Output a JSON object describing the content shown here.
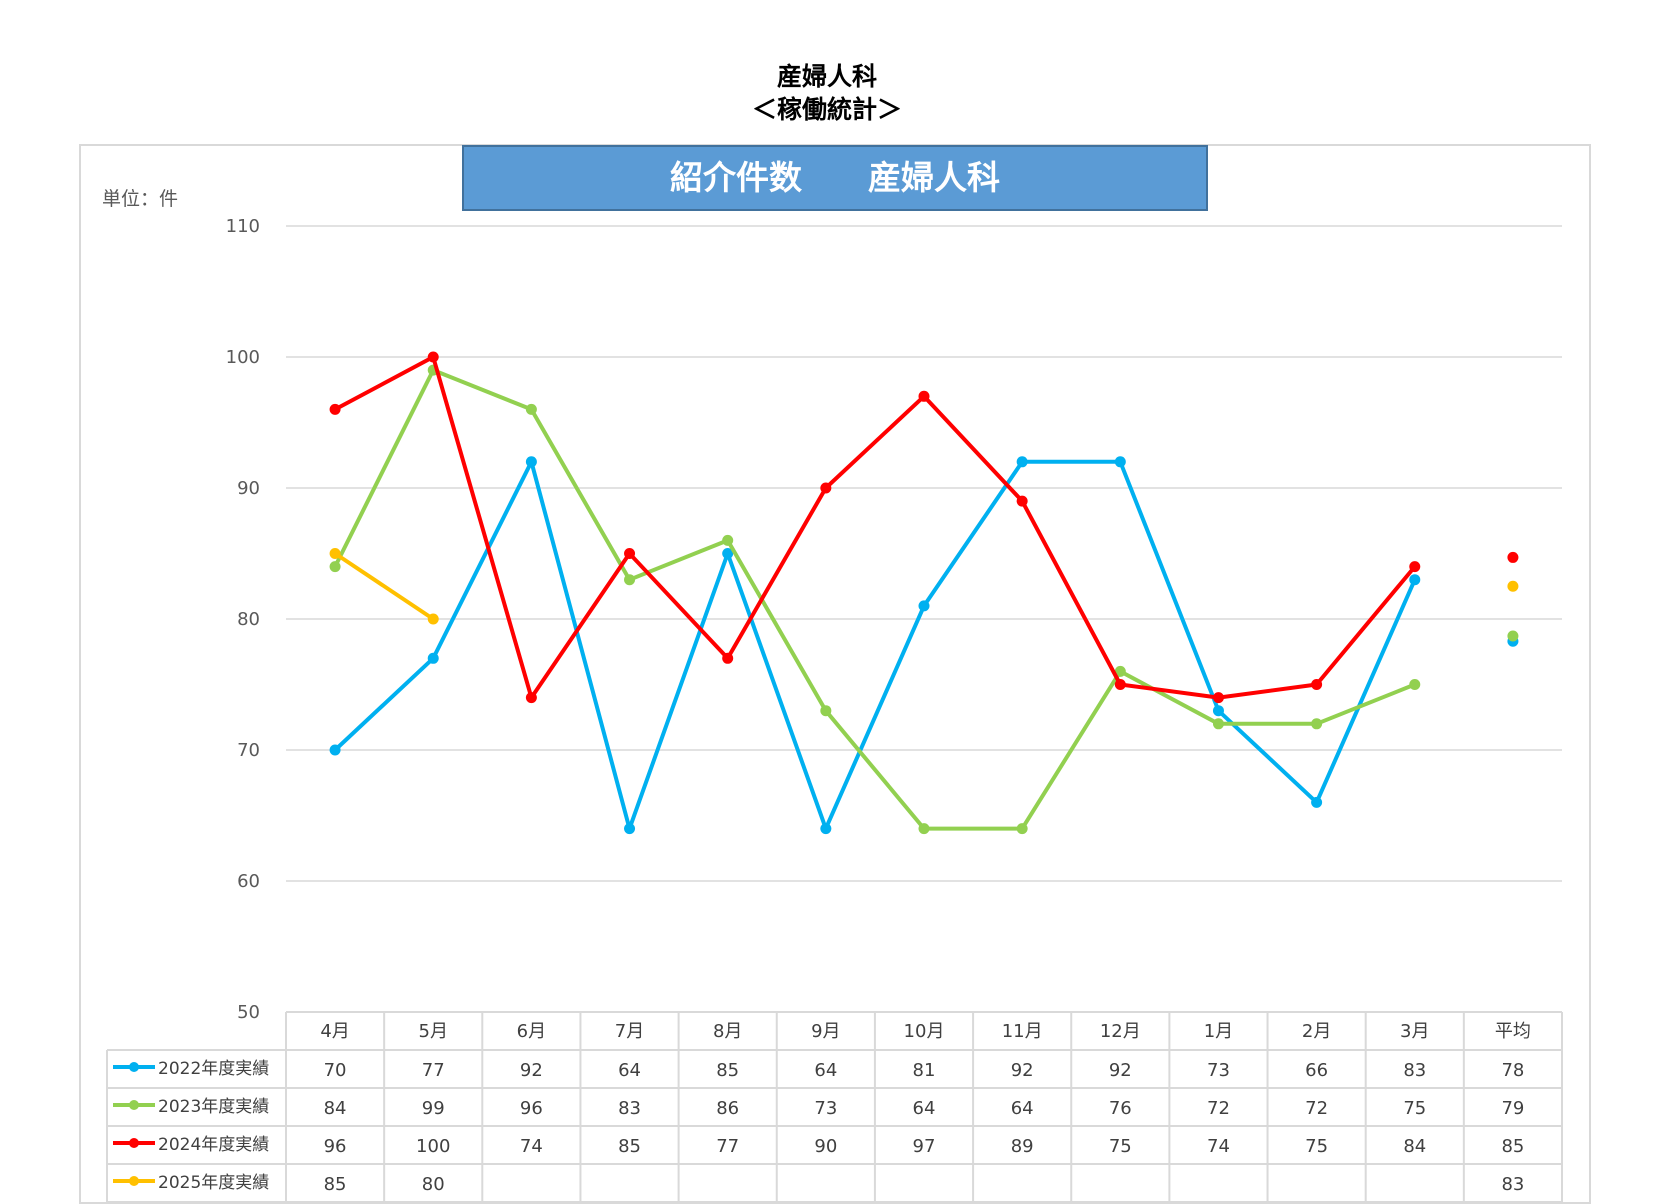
{
  "page": {
    "title_line1": "産婦人科",
    "title_line2": "＜稼働統計＞"
  },
  "chart_data": {
    "type": "line",
    "title": "紹介件数　　産婦人科",
    "unit_label": "単位：件",
    "categories": [
      "4月",
      "5月",
      "6月",
      "7月",
      "8月",
      "9月",
      "10月",
      "11月",
      "12月",
      "1月",
      "2月",
      "3月"
    ],
    "average_label": "平均",
    "ylim": [
      50,
      110
    ],
    "yticks": [
      110,
      100,
      90,
      80,
      70,
      60,
      50
    ],
    "grid": true,
    "legend_position": "data-table-left",
    "series": [
      {
        "name": "2022年度実績",
        "color": "#00b0f0",
        "values": [
          70,
          77,
          92,
          64,
          85,
          64,
          81,
          92,
          92,
          73,
          66,
          83
        ],
        "average": 78,
        "average_plot": 78.3
      },
      {
        "name": "2023年度実績",
        "color": "#92d050",
        "values": [
          84,
          99,
          96,
          83,
          86,
          73,
          64,
          64,
          76,
          72,
          72,
          75
        ],
        "average": 79,
        "average_plot": 78.7
      },
      {
        "name": "2024年度実績",
        "color": "#ff0000",
        "values": [
          96,
          100,
          74,
          85,
          77,
          90,
          97,
          89,
          75,
          74,
          75,
          84
        ],
        "average": 85,
        "average_plot": 84.7
      },
      {
        "name": "2025年度実績",
        "color": "#ffc000",
        "values": [
          85,
          80,
          null,
          null,
          null,
          null,
          null,
          null,
          null,
          null,
          null,
          null
        ],
        "average": 83,
        "average_plot": 82.5
      }
    ]
  }
}
